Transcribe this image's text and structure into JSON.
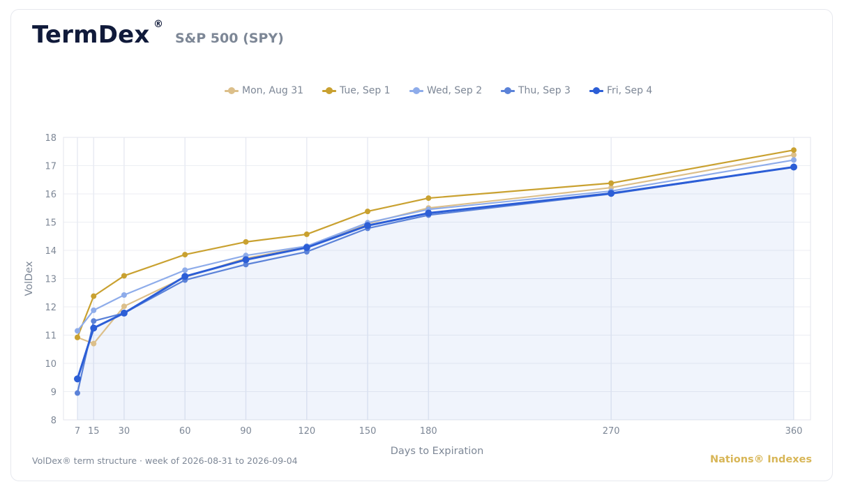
{
  "header": {
    "brand": "TermDex",
    "brand_mark": "®",
    "subtitle": "S&P 500 (SPY)"
  },
  "footer": {
    "note": "VolDex® term structure · week of 2026-08-31 to 2026-09-04",
    "brand": "Nations® Indexes"
  },
  "chart_data": {
    "type": "line",
    "x": [
      7,
      15,
      30,
      60,
      90,
      120,
      150,
      180,
      270,
      360
    ],
    "xlabel": "Days to Expiration",
    "ylabel": "VolDex",
    "ylim": [
      8,
      18
    ],
    "yticks": [
      8,
      9,
      10,
      11,
      12,
      13,
      14,
      15,
      16,
      17,
      18
    ],
    "xticks": [
      7,
      15,
      30,
      60,
      90,
      120,
      150,
      180,
      270,
      360
    ],
    "grid": true,
    "legend": "top",
    "series": [
      {
        "name": "Mon, Aug 31",
        "color": "#dcbf8a",
        "values": [
          10.92,
          10.7,
          12.02,
          13.05,
          13.72,
          14.12,
          14.95,
          15.5,
          16.22,
          17.38
        ]
      },
      {
        "name": "Tue, Sep 1",
        "color": "#c9a130",
        "values": [
          10.92,
          12.38,
          13.1,
          13.85,
          14.3,
          14.57,
          15.38,
          15.85,
          16.38,
          17.55
        ]
      },
      {
        "name": "Wed, Sep 2",
        "color": "#8eacea",
        "values": [
          11.15,
          11.88,
          12.42,
          13.3,
          13.82,
          14.15,
          14.98,
          15.45,
          16.1,
          17.2
        ]
      },
      {
        "name": "Thu, Sep 3",
        "color": "#5b82d8",
        "values": [
          8.95,
          11.5,
          11.78,
          12.95,
          13.5,
          13.95,
          14.78,
          15.25,
          16.0,
          16.95
        ]
      },
      {
        "name": "Fri, Sep 4",
        "color": "#2c5ed6",
        "values": [
          9.45,
          11.25,
          11.78,
          13.08,
          13.67,
          14.1,
          14.88,
          15.32,
          16.02,
          16.95
        ],
        "fill": true
      }
    ]
  }
}
